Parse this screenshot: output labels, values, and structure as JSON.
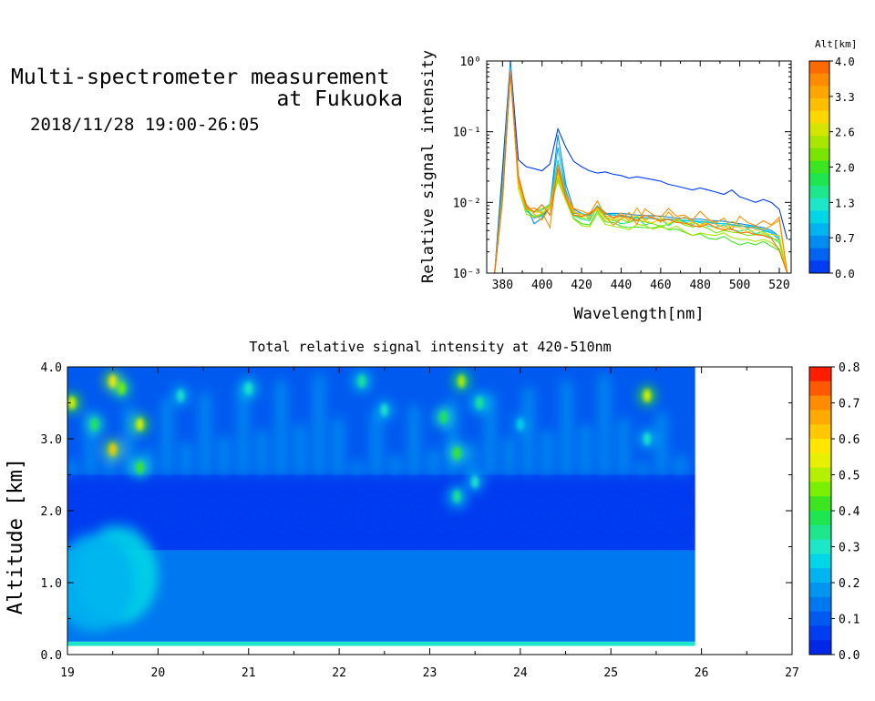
{
  "header": {
    "title_line1": "Multi-spectrometer measurement",
    "title_line2": "at Fukuoka",
    "datetime": "2018/11/28 19:00-26:05"
  },
  "chart_data": [
    {
      "type": "line",
      "xlabel": "Wavelength[nm]",
      "ylabel": "Relative signal intensity",
      "xlim": [
        372,
        526
      ],
      "x_ticks": [
        380,
        400,
        420,
        440,
        460,
        480,
        500,
        520
      ],
      "y_scale": "log",
      "ylim": [
        0.001,
        1
      ],
      "y_tick_labels": [
        "10⁻³",
        "10⁻²",
        "10⁻¹",
        "10⁰"
      ],
      "colorbar": {
        "title": "Alt[km]",
        "labels": [
          "4.0",
          "3.3",
          "2.6",
          "2.0",
          "1.3",
          "0.7",
          "0.0"
        ],
        "colors": [
          "#ff6a00",
          "#ff8c00",
          "#ffa500",
          "#ffbf00",
          "#ffd700",
          "#d4e600",
          "#a8e600",
          "#7ae600",
          "#3ce61e",
          "#1ee650",
          "#1ee68c",
          "#1ee6c8",
          "#00d7e6",
          "#00b4f0",
          "#008cf0",
          "#0064f0",
          "#003cf0"
        ]
      },
      "x": [
        376,
        380,
        384,
        388,
        392,
        396,
        400,
        404,
        408,
        412,
        416,
        420,
        424,
        428,
        432,
        436,
        440,
        444,
        448,
        452,
        456,
        460,
        464,
        468,
        472,
        476,
        480,
        484,
        488,
        492,
        496,
        500,
        504,
        508,
        512,
        516,
        520,
        524
      ],
      "series": [
        {
          "color": "#003cf0",
          "values": [
            0.001,
            0.03,
            1.0,
            0.04,
            0.032,
            0.03,
            0.028,
            0.035,
            0.11,
            0.06,
            0.038,
            0.032,
            0.028,
            0.026,
            0.027,
            0.025,
            0.024,
            0.022,
            0.023,
            0.022,
            0.021,
            0.02,
            0.018,
            0.017,
            0.016,
            0.015,
            0.016,
            0.015,
            0.014,
            0.013,
            0.015,
            0.012,
            0.011,
            0.01,
            0.011,
            0.01,
            0.008,
            0.003
          ]
        },
        {
          "color": "#008cf0",
          "values": [
            0.001,
            0.02,
            0.9,
            0.02,
            0.009,
            0.005,
            0.006,
            0.009,
            0.09,
            0.018,
            0.008,
            0.007,
            0.006,
            0.009,
            0.007,
            0.007,
            0.007,
            0.0068,
            0.0066,
            0.0065,
            0.0065,
            0.0064,
            0.0062,
            0.006,
            0.006,
            0.0058,
            0.0058,
            0.0056,
            0.0055,
            0.0054,
            0.0052,
            0.005,
            0.0048,
            0.0046,
            0.0044,
            0.004,
            0.0033,
            0.001
          ]
        },
        {
          "color": "#00b4f0",
          "values": [
            0.001,
            0.018,
            0.85,
            0.018,
            0.008,
            0.006,
            0.0065,
            0.009,
            0.06,
            0.015,
            0.007,
            0.0068,
            0.0062,
            0.0085,
            0.0068,
            0.0066,
            0.0064,
            0.0062,
            0.006,
            0.006,
            0.0059,
            0.0058,
            0.0057,
            0.0056,
            0.0055,
            0.0054,
            0.0053,
            0.0052,
            0.005,
            0.005,
            0.0048,
            0.0046,
            0.0045,
            0.0043,
            0.004,
            0.0037,
            0.003,
            0.001
          ]
        },
        {
          "color": "#00d7e6",
          "values": [
            0.001,
            0.016,
            0.8,
            0.016,
            0.0075,
            0.0063,
            0.0068,
            0.0095,
            0.04,
            0.014,
            0.0072,
            0.007,
            0.0065,
            0.009,
            0.0069,
            0.0067,
            0.0066,
            0.0063,
            0.0062,
            0.0061,
            0.006,
            0.0058,
            0.0058,
            0.0057,
            0.0056,
            0.0055,
            0.0054,
            0.0053,
            0.0051,
            0.005,
            0.0049,
            0.0047,
            0.0046,
            0.0045,
            0.0042,
            0.0038,
            0.0032,
            0.001
          ]
        },
        {
          "color": "#1ee68c",
          "values": [
            0.001,
            0.015,
            0.75,
            0.02,
            0.0085,
            0.0072,
            0.0078,
            0.0095,
            0.03,
            0.013,
            0.0065,
            0.0058,
            0.0055,
            0.0085,
            0.0062,
            0.0056,
            0.005,
            0.0052,
            0.0062,
            0.0048,
            0.0052,
            0.0058,
            0.0047,
            0.0056,
            0.0053,
            0.0049,
            0.0052,
            0.0046,
            0.0045,
            0.0048,
            0.0041,
            0.0039,
            0.0042,
            0.0036,
            0.0039,
            0.0032,
            0.0027,
            0.001
          ]
        },
        {
          "color": "#3ce61e",
          "values": [
            0.001,
            0.014,
            0.7,
            0.018,
            0.008,
            0.0062,
            0.0067,
            0.009,
            0.022,
            0.0115,
            0.006,
            0.005,
            0.0048,
            0.0075,
            0.0053,
            0.0052,
            0.0046,
            0.0044,
            0.0045,
            0.0044,
            0.0043,
            0.0047,
            0.0041,
            0.0042,
            0.0038,
            0.0034,
            0.0036,
            0.0031,
            0.003,
            0.0033,
            0.0028,
            0.0025,
            0.0027,
            0.0025,
            0.0028,
            0.0024,
            0.0021,
            0.001
          ]
        },
        {
          "color": "#7ae600",
          "values": [
            0.001,
            0.013,
            0.72,
            0.022,
            0.0078,
            0.0075,
            0.0082,
            0.009,
            0.026,
            0.012,
            0.0066,
            0.0061,
            0.0058,
            0.0088,
            0.0061,
            0.0055,
            0.0058,
            0.0052,
            0.0057,
            0.0053,
            0.005,
            0.0046,
            0.0049,
            0.0055,
            0.0048,
            0.0045,
            0.0047,
            0.0043,
            0.0037,
            0.004,
            0.0038,
            0.0037,
            0.0034,
            0.0035,
            0.0036,
            0.0031,
            0.0029,
            0.001
          ]
        },
        {
          "color": "#a8e600",
          "values": [
            0.001,
            0.013,
            0.68,
            0.016,
            0.0068,
            0.0062,
            0.007,
            0.0085,
            0.02,
            0.0105,
            0.0058,
            0.0047,
            0.0045,
            0.007,
            0.0049,
            0.0046,
            0.0044,
            0.0041,
            0.0049,
            0.0047,
            0.0042,
            0.0045,
            0.0042,
            0.0046,
            0.0039,
            0.0034,
            0.0037,
            0.0035,
            0.0034,
            0.0037,
            0.0032,
            0.003,
            0.003,
            0.0028,
            0.003,
            0.0027,
            0.0022,
            0.001
          ]
        },
        {
          "color": "#ffd700",
          "values": [
            0.001,
            0.012,
            0.7,
            0.017,
            0.0082,
            0.0074,
            0.0071,
            0.0088,
            0.024,
            0.0118,
            0.0072,
            0.0068,
            0.0061,
            0.0082,
            0.0056,
            0.0058,
            0.0062,
            0.0058,
            0.0065,
            0.0055,
            0.0051,
            0.006,
            0.005,
            0.0059,
            0.0049,
            0.0052,
            0.0048,
            0.0051,
            0.0043,
            0.0041,
            0.0046,
            0.0044,
            0.0038,
            0.0041,
            0.0037,
            0.0035,
            0.0034,
            0.001
          ]
        },
        {
          "color": "#ffa500",
          "values": [
            0.001,
            0.012,
            0.72,
            0.019,
            0.0095,
            0.0068,
            0.0056,
            0.0085,
            0.032,
            0.0125,
            0.0076,
            0.0062,
            0.0072,
            0.0078,
            0.0065,
            0.0061,
            0.0071,
            0.0054,
            0.0084,
            0.0056,
            0.0063,
            0.0052,
            0.0073,
            0.0056,
            0.0062,
            0.0054,
            0.0046,
            0.0058,
            0.0049,
            0.0044,
            0.0054,
            0.0048,
            0.0043,
            0.0045,
            0.0041,
            0.0047,
            0.0056,
            0.001
          ]
        },
        {
          "color": "#ff8c00",
          "values": [
            0.001,
            0.011,
            0.74,
            0.021,
            0.008,
            0.0083,
            0.0072,
            0.0044,
            0.035,
            0.013,
            0.0082,
            0.0076,
            0.0068,
            0.0105,
            0.0063,
            0.0048,
            0.0058,
            0.0072,
            0.0049,
            0.0081,
            0.0067,
            0.0062,
            0.0082,
            0.0064,
            0.0066,
            0.0056,
            0.0075,
            0.0058,
            0.0052,
            0.006,
            0.0041,
            0.0064,
            0.0052,
            0.0047,
            0.0055,
            0.0048,
            0.0062,
            0.001
          ]
        },
        {
          "color": "#ff6a00",
          "values": [
            0.001,
            0.011,
            0.7,
            0.024,
            0.0088,
            0.0073,
            0.0093,
            0.0066,
            0.03,
            0.0115,
            0.0066,
            0.0064,
            0.0068,
            0.0086,
            0.0072,
            0.006,
            0.0066,
            0.0061,
            0.0055,
            0.0066,
            0.006,
            0.0055,
            0.0058,
            0.0052,
            0.0051,
            0.0047,
            0.0045,
            0.005,
            0.0044,
            0.0041,
            0.0042,
            0.0037,
            0.0038,
            0.0035,
            0.0034,
            0.0031,
            0.0021,
            0.001
          ]
        }
      ]
    },
    {
      "type": "heatmap",
      "title": "Total relative signal intensity at 420-510nm",
      "ylabel": "Altitude [km]",
      "xlim": [
        19,
        27
      ],
      "ylim": [
        0,
        4
      ],
      "x_ticks": [
        "19",
        "20",
        "21",
        "22",
        "23",
        "24",
        "25",
        "26",
        "27"
      ],
      "y_ticks": [
        "0.0",
        "1.0",
        "2.0",
        "3.0",
        "4.0"
      ],
      "data_x_range": [
        19,
        25.93
      ],
      "colorbar": {
        "labels": [
          "0.8",
          "0.7",
          "0.6",
          "0.5",
          "0.4",
          "0.3",
          "0.2",
          "0.1",
          "0.0"
        ],
        "colors": [
          "#ff1e00",
          "#ff5a00",
          "#ff8c00",
          "#ffaa00",
          "#ffc800",
          "#ffe600",
          "#e6f000",
          "#b4f000",
          "#78f000",
          "#3ce61e",
          "#1ee650",
          "#1ee68c",
          "#1ee6c8",
          "#00d7e6",
          "#00b4f0",
          "#0096f0",
          "#0078f0",
          "#005af0",
          "#003cf0",
          "#0028e6"
        ]
      },
      "layers": [
        {
          "alt_range": [
            0.12,
            0.18
          ],
          "value": 0.3,
          "note": ""
        },
        {
          "alt_range": [
            0.18,
            1.45
          ],
          "value": 0.13
        },
        {
          "alt_range": [
            1.45,
            2.5
          ],
          "value": 0.06
        },
        {
          "alt_range": [
            2.5,
            4.0
          ],
          "value": 0.1
        }
      ],
      "hotspots": [
        {
          "t": 19.05,
          "alt": 3.5,
          "value": 0.55
        },
        {
          "t": 19.3,
          "alt": 3.2,
          "value": 0.38
        },
        {
          "t": 19.5,
          "alt": 3.8,
          "value": 0.6
        },
        {
          "t": 19.5,
          "alt": 2.85,
          "value": 0.62
        },
        {
          "t": 19.8,
          "alt": 3.2,
          "value": 0.55
        },
        {
          "t": 19.8,
          "alt": 2.6,
          "value": 0.42
        },
        {
          "t": 19.6,
          "alt": 3.7,
          "value": 0.45
        },
        {
          "t": 19.55,
          "alt": 1.1,
          "value": 0.33
        },
        {
          "t": 19.3,
          "alt": 1.0,
          "value": 0.3
        },
        {
          "t": 20.25,
          "alt": 3.6,
          "value": 0.3
        },
        {
          "t": 21.0,
          "alt": 3.7,
          "value": 0.32
        },
        {
          "t": 22.25,
          "alt": 3.8,
          "value": 0.35
        },
        {
          "t": 22.5,
          "alt": 3.4,
          "value": 0.3
        },
        {
          "t": 23.15,
          "alt": 3.3,
          "value": 0.38
        },
        {
          "t": 23.35,
          "alt": 3.8,
          "value": 0.5
        },
        {
          "t": 23.3,
          "alt": 2.8,
          "value": 0.4
        },
        {
          "t": 23.3,
          "alt": 2.2,
          "value": 0.35
        },
        {
          "t": 23.55,
          "alt": 3.5,
          "value": 0.35
        },
        {
          "t": 23.5,
          "alt": 2.4,
          "value": 0.3
        },
        {
          "t": 24.0,
          "alt": 3.2,
          "value": 0.25
        },
        {
          "t": 25.4,
          "alt": 3.6,
          "value": 0.55
        },
        {
          "t": 25.4,
          "alt": 3.0,
          "value": 0.3
        }
      ]
    }
  ]
}
